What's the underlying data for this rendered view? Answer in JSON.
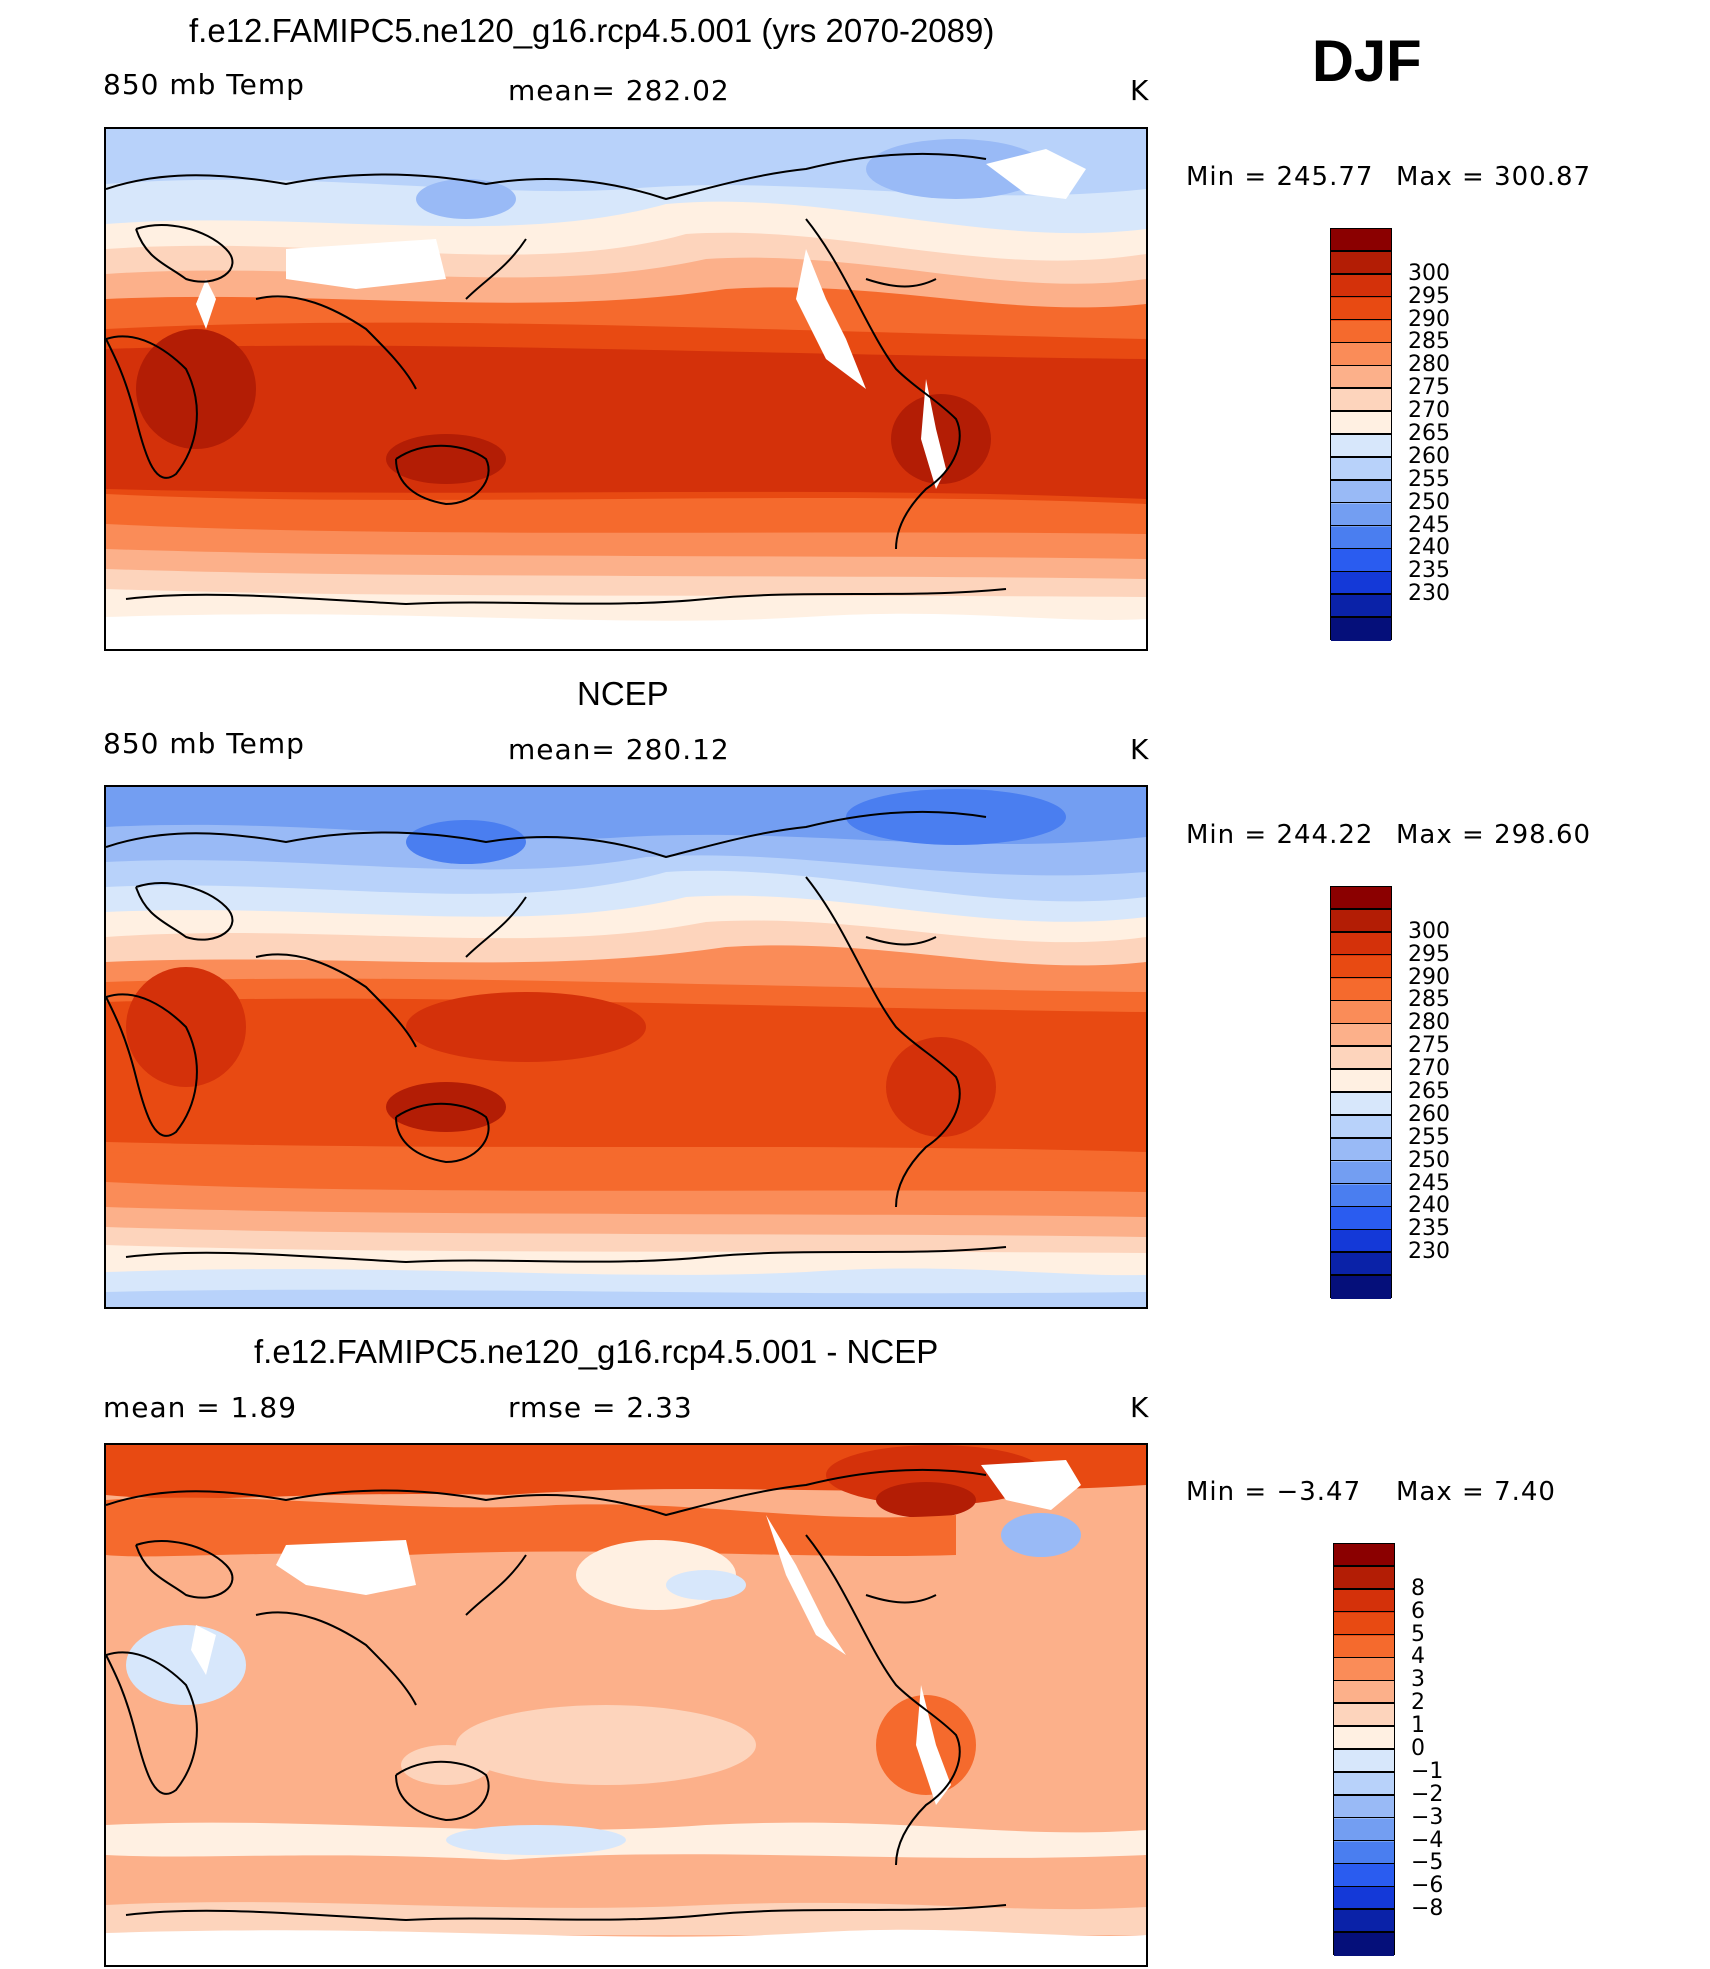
{
  "season": "DJF",
  "units": "K",
  "panels": [
    {
      "id": "model",
      "title": "f.e12.FAMIPC5.ne120_g16.rcp4.5.001 (yrs 2070-2089)",
      "left_label": "850 mb Temp",
      "center_label": "mean= 282.02",
      "units": "K",
      "min_label": "Min  =  245.77",
      "max_label": "Max  =  300.87",
      "colorbar": {
        "colors": [
          "#8b0000",
          "#b31d05",
          "#d4310a",
          "#e84a12",
          "#f56a2d",
          "#fa8c58",
          "#fcb08a",
          "#fdd4bc",
          "#fff0e2",
          "#d7e7fb",
          "#b8d2fa",
          "#99baf6",
          "#739ef2",
          "#4a7ef0",
          "#2a5cf0",
          "#1439d8",
          "#0a22a8",
          "#050f7a"
        ],
        "labels": [
          "300",
          "295",
          "290",
          "285",
          "280",
          "275",
          "270",
          "265",
          "260",
          "255",
          "250",
          "245",
          "240",
          "235",
          "230"
        ]
      }
    },
    {
      "id": "obs",
      "title": "NCEP",
      "left_label": "850 mb Temp",
      "center_label": "mean= 280.12",
      "units": "K",
      "min_label": "Min  =  244.22",
      "max_label": "Max  =  298.60",
      "colorbar": {
        "colors": [
          "#8b0000",
          "#b31d05",
          "#d4310a",
          "#e84a12",
          "#f56a2d",
          "#fa8c58",
          "#fcb08a",
          "#fdd4bc",
          "#fff0e2",
          "#d7e7fb",
          "#b8d2fa",
          "#99baf6",
          "#739ef2",
          "#4a7ef0",
          "#2a5cf0",
          "#1439d8",
          "#0a22a8",
          "#050f7a"
        ],
        "labels": [
          "300",
          "295",
          "290",
          "285",
          "280",
          "275",
          "270",
          "265",
          "260",
          "255",
          "250",
          "245",
          "240",
          "235",
          "230"
        ]
      }
    },
    {
      "id": "diff",
      "title": "f.e12.FAMIPC5.ne120_g16.rcp4.5.001 - NCEP",
      "left_label": "mean =     1.89",
      "center_label": "rmse =     2.33",
      "units": "K",
      "min_label": "Min  =    −3.47",
      "max_label": "Max  =      7.40",
      "colorbar": {
        "colors": [
          "#8b0000",
          "#b31d05",
          "#d4310a",
          "#e84a12",
          "#f56a2d",
          "#fa8c58",
          "#fcb08a",
          "#fdd4bc",
          "#fff0e2",
          "#d7e7fb",
          "#b8d2fa",
          "#99baf6",
          "#739ef2",
          "#4a7ef0",
          "#2a5cf0",
          "#1439d8",
          "#0a22a8",
          "#050f7a"
        ],
        "labels": [
          "8",
          "6",
          "5",
          "4",
          "3",
          "2",
          "1",
          "0",
          "−1",
          "−2",
          "−3",
          "−4",
          "−5",
          "−6",
          "−8"
        ]
      }
    }
  ]
}
